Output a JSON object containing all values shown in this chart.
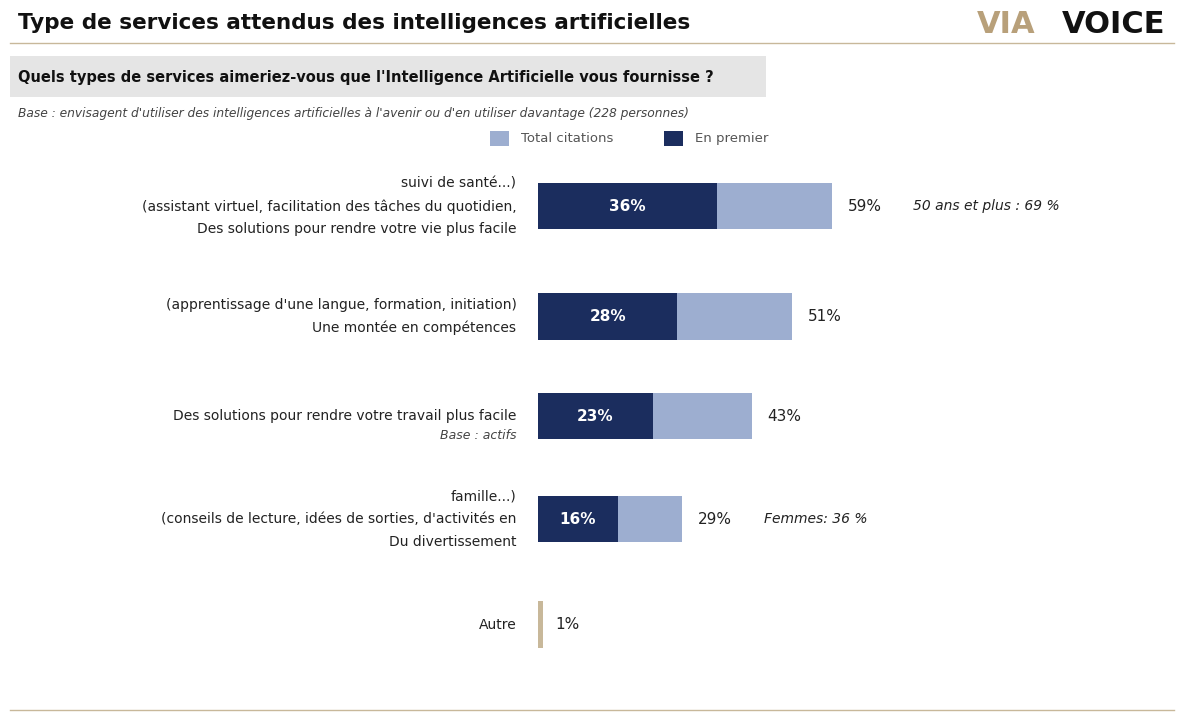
{
  "title": "Type de services attendus des intelligences artificielles",
  "logo_via": "VIA",
  "logo_voice": "VOICE",
  "question": "Quels types de services aimeriez-vous que l'Intelligence Artificielle vous fournisse ?",
  "base_text": "Base : envisagent d'utiliser des intelligences artificielles à l'avenir ou d'en utiliser davantage (228 personnes)",
  "legend_total": "Total citations",
  "legend_premier": "En premier",
  "color_dark": "#1b2d5e",
  "color_light": "#9daed0",
  "color_autre": "#c8b89a",
  "color_logo_via": "#b8a07a",
  "color_logo_voice": "#111111",
  "background": "#ffffff",
  "title_line_color": "#c8b89a",
  "categories": [
    {
      "label_lines": [
        "Des solutions pour rendre votre vie plus facile",
        "(assistant virtuel, facilitation des tâches du quotidien,",
        "suivi de santé...)"
      ],
      "en_premier": 36,
      "total": 59,
      "note": "50 ans et plus : 69 %",
      "sub_label": null
    },
    {
      "label_lines": [
        "Une montée en compétences",
        "(apprentissage d'une langue, formation, initiation)"
      ],
      "en_premier": 28,
      "total": 51,
      "note": null,
      "sub_label": null
    },
    {
      "label_lines": [
        "Des solutions pour rendre votre travail plus facile"
      ],
      "en_premier": 23,
      "total": 43,
      "note": null,
      "sub_label": "Base : actifs"
    },
    {
      "label_lines": [
        "Du divertissement",
        "(conseils de lecture, idées de sorties, d'activités en",
        "famille...)"
      ],
      "en_premier": 16,
      "total": 29,
      "note": "Femmes: 36 %",
      "sub_label": null
    }
  ],
  "autre_label": "Autre",
  "autre_value": 1
}
